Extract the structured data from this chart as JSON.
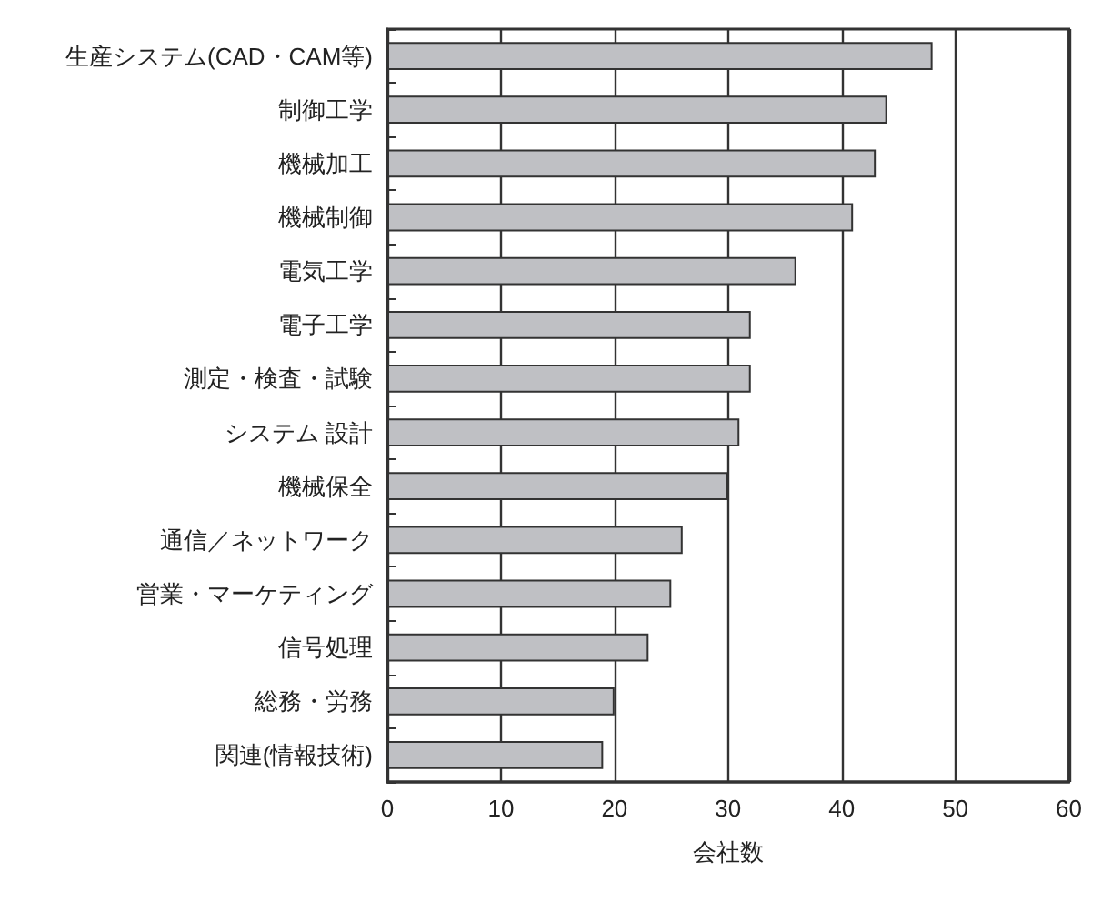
{
  "chart_data": {
    "type": "bar",
    "orientation": "horizontal",
    "xlabel": "会社数",
    "categories": [
      "生産システム(CAD・CAM等)",
      "制御工学",
      "機械加工",
      "機械制御",
      "電気工学",
      "電子工学",
      "測定・検査・試験",
      "システム 設計",
      "機械保全",
      "通信／ネットワーク",
      "営業・マーケティング",
      "信号処理",
      "総務・労務",
      "関連(情報技術)"
    ],
    "values": [
      48,
      44,
      43,
      41,
      36,
      32,
      32,
      31,
      30,
      26,
      25,
      23,
      20,
      19
    ],
    "color": "#bfc0c4",
    "xlim": [
      0,
      60
    ],
    "xticks": [
      0,
      10,
      20,
      30,
      40,
      50,
      60
    ],
    "grid": "x"
  }
}
